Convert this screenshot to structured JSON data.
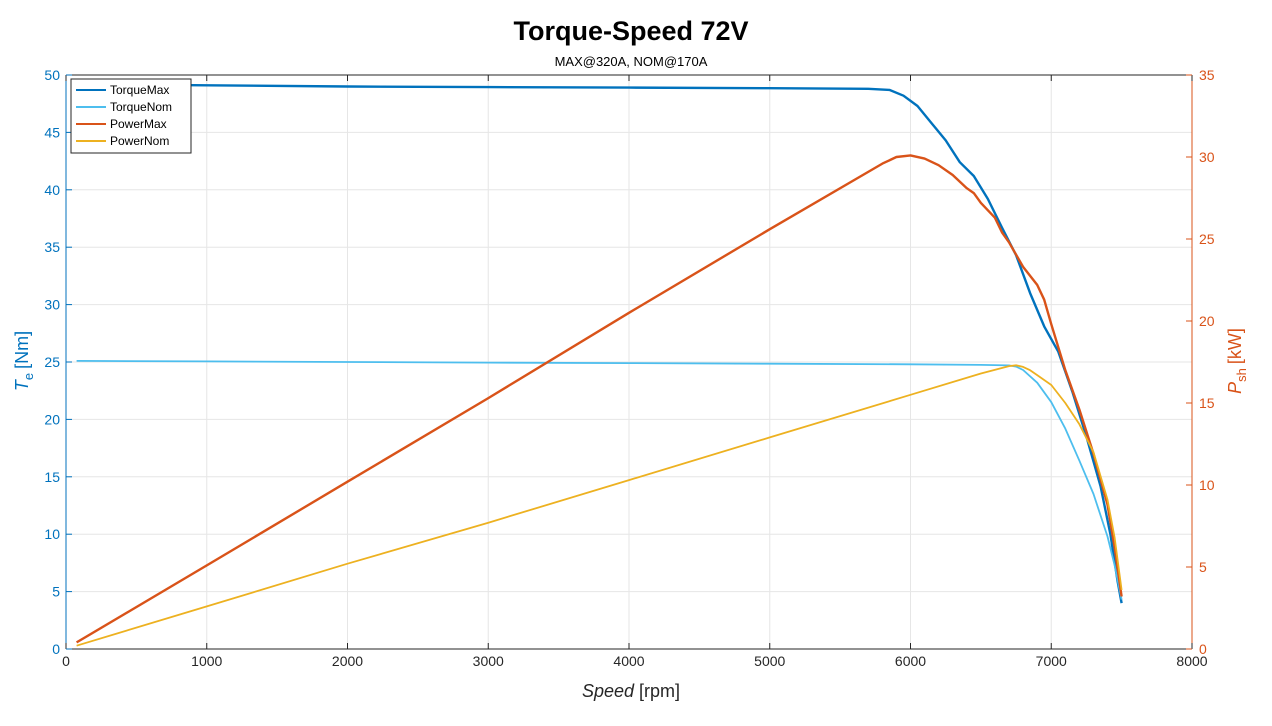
{
  "chart_data": {
    "type": "line",
    "title": "Torque-Speed 72V",
    "subtitle": "MAX@320A, NOM@170A",
    "xlabel": {
      "main": "Speed",
      "unit": "[rpm]"
    },
    "ylabel_left": {
      "main": "T",
      "sub": "e",
      "unit": "[Nm]"
    },
    "ylabel_right": {
      "main": "P",
      "sub": "sh",
      "unit": "[kW]"
    },
    "xlim": [
      0,
      8000
    ],
    "ylim_left": [
      0,
      50
    ],
    "ylim_right": [
      0,
      35
    ],
    "x_ticks": [
      0,
      1000,
      2000,
      3000,
      4000,
      5000,
      6000,
      7000,
      8000
    ],
    "y_left_ticks": [
      0,
      5,
      10,
      15,
      20,
      25,
      30,
      35,
      40,
      45,
      50
    ],
    "y_right_ticks": [
      0,
      5,
      10,
      15,
      20,
      25,
      30,
      35
    ],
    "grid": true,
    "legend_position": "top-left",
    "colors": {
      "left_axis": "#0072bd",
      "right_axis": "#d95319"
    },
    "series": [
      {
        "name": "TorqueMax",
        "axis": "left",
        "color": "#0072bd",
        "x": [
          75,
          1000,
          2000,
          3000,
          4000,
          5000,
          5700,
          5850,
          5950,
          6050,
          6150,
          6250,
          6350,
          6450,
          6550,
          6650,
          6750,
          6850,
          6950,
          7050,
          7150,
          7250,
          7350,
          7420,
          7470,
          7500
        ],
        "y": [
          49.2,
          49.1,
          49.0,
          48.95,
          48.9,
          48.85,
          48.8,
          48.7,
          48.2,
          47.3,
          45.8,
          44.3,
          42.4,
          41.2,
          39.2,
          36.7,
          34.3,
          31.0,
          28.1,
          25.9,
          22.4,
          18.5,
          14.2,
          10.0,
          6.0,
          4.0
        ]
      },
      {
        "name": "TorqueNom",
        "axis": "left",
        "color": "#4dbeee",
        "x": [
          75,
          1000,
          2000,
          3000,
          4000,
          5000,
          6000,
          6500,
          6700,
          6750,
          6800,
          6900,
          7000,
          7100,
          7200,
          7300,
          7400,
          7450,
          7500
        ],
        "y": [
          25.1,
          25.05,
          25.0,
          24.95,
          24.9,
          24.85,
          24.8,
          24.75,
          24.7,
          24.6,
          24.3,
          23.2,
          21.5,
          19.2,
          16.4,
          13.5,
          9.8,
          7.3,
          4.3
        ]
      },
      {
        "name": "PowerMax",
        "axis": "right",
        "color": "#d95319",
        "x": [
          75,
          1000,
          2000,
          3000,
          4000,
          5000,
          5800,
          5900,
          6000,
          6100,
          6200,
          6300,
          6400,
          6450,
          6500,
          6600,
          6650,
          6700,
          6800,
          6900,
          6950,
          7000,
          7100,
          7200,
          7300,
          7400,
          7450,
          7500
        ],
        "y": [
          0.4,
          5.1,
          10.2,
          15.3,
          20.5,
          25.6,
          29.6,
          30.0,
          30.1,
          29.9,
          29.5,
          28.9,
          28.1,
          27.8,
          27.2,
          26.3,
          25.4,
          24.8,
          23.3,
          22.2,
          21.3,
          19.8,
          17.0,
          14.6,
          11.9,
          8.8,
          6.2,
          3.2
        ]
      },
      {
        "name": "PowerNom",
        "axis": "right",
        "color": "#edb120",
        "x": [
          75,
          1000,
          2000,
          3000,
          4000,
          5000,
          6000,
          6500,
          6700,
          6750,
          6800,
          6850,
          6900,
          7000,
          7100,
          7200,
          7300,
          7400,
          7450,
          7500
        ],
        "y": [
          0.2,
          2.6,
          5.2,
          7.7,
          10.3,
          12.9,
          15.5,
          16.8,
          17.25,
          17.3,
          17.2,
          17.0,
          16.7,
          16.1,
          15.0,
          13.7,
          12.0,
          9.1,
          6.8,
          3.6
        ]
      }
    ]
  }
}
